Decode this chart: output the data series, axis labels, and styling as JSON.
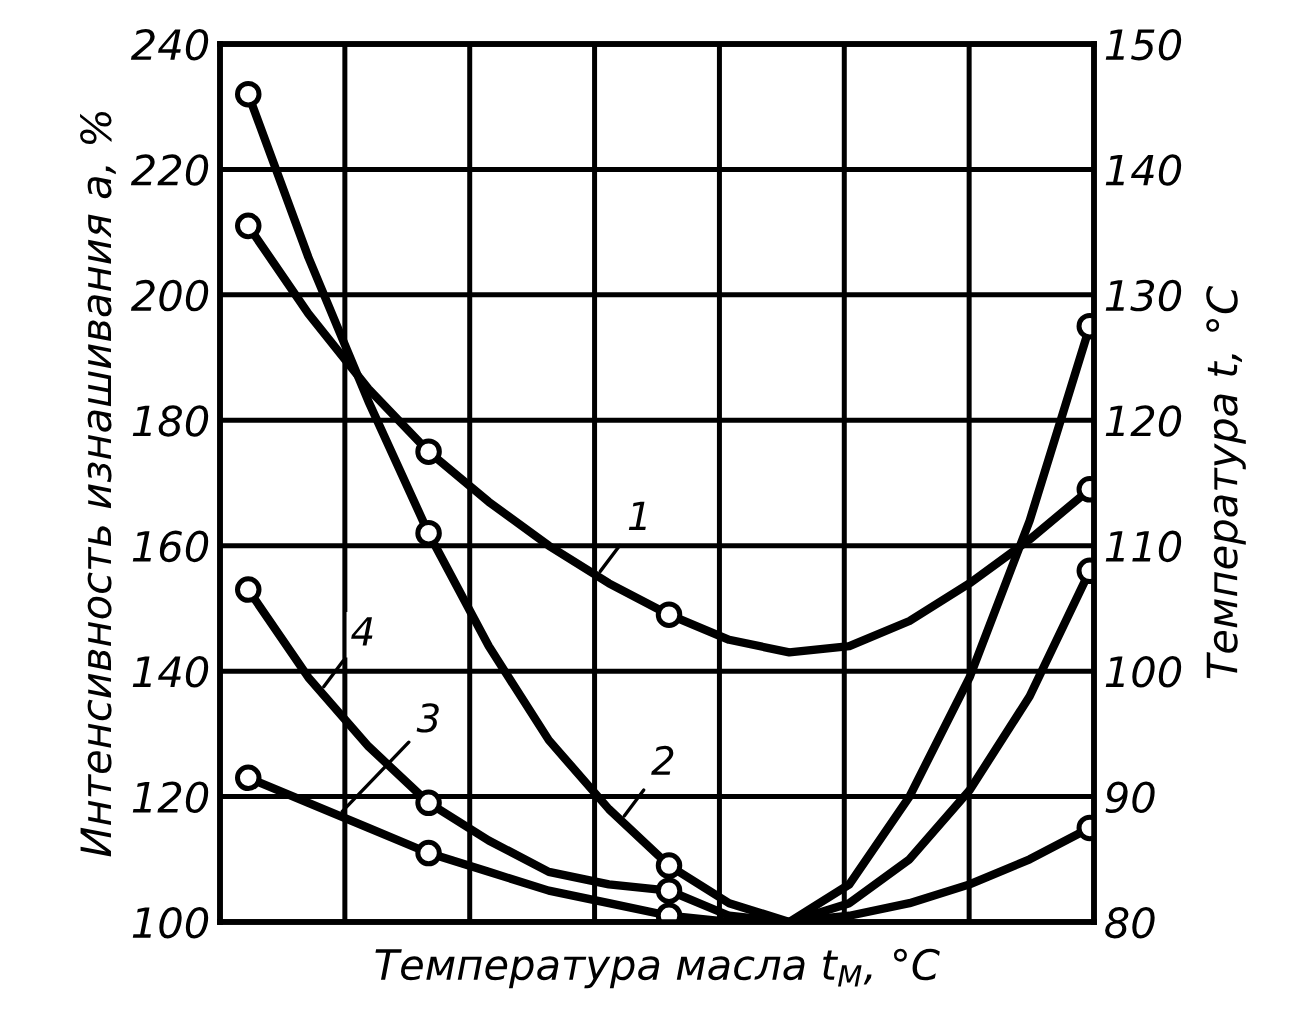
{
  "chart_data": {
    "type": "line",
    "xlabel": "Температура масла t$_{М}$, °C",
    "ylabel": "Интенсивность изнашивания a, %",
    "y2label": "Температура t, °C",
    "categories": [
      null,
      null,
      null,
      null,
      null,
      null,
      null,
      null,
      null,
      null,
      null,
      null,
      null,
      null,
      null
    ],
    "series": [
      {
        "name": "1",
        "color": "#000000",
        "values": [
          211,
          197,
          185,
          175,
          167,
          160,
          154,
          149,
          145,
          143,
          144,
          148,
          154,
          161,
          169
        ]
      },
      {
        "name": "2",
        "color": "#000000",
        "values": [
          232,
          206,
          183,
          162,
          144,
          129,
          118,
          109,
          103,
          100,
          106,
          120,
          139,
          164,
          195
        ]
      },
      {
        "name": "3",
        "color": "#000000",
        "values": [
          123,
          119,
          115,
          111,
          108,
          105,
          103,
          101,
          100,
          100,
          101,
          103,
          106,
          110,
          115
        ]
      },
      {
        "name": "4",
        "color": "#000000",
        "values": [
          153,
          139,
          128,
          119,
          113,
          108,
          106,
          105,
          101,
          100,
          103,
          110,
          121,
          136,
          156
        ]
      },
      {
        "type": "scatter",
        "color": "#000000",
        "marker": "circle",
        "values": [
          211,
          null,
          null,
          175,
          null,
          null,
          null,
          149,
          null,
          null,
          null,
          null,
          null,
          null,
          169
        ]
      },
      {
        "type": "scatter",
        "color": "#000000",
        "marker": "circle",
        "values": [
          232,
          null,
          null,
          162,
          null,
          null,
          null,
          109,
          null,
          null,
          null,
          null,
          null,
          null,
          195
        ]
      },
      {
        "type": "scatter",
        "color": "#000000",
        "marker": "circle",
        "values": [
          123,
          null,
          null,
          111,
          null,
          null,
          null,
          101,
          null,
          null,
          null,
          null,
          null,
          null,
          115
        ]
      },
      {
        "type": "scatter",
        "color": "#000000",
        "marker": "circle",
        "values": [
          153,
          null,
          null,
          119,
          null,
          null,
          null,
          105,
          null,
          null,
          null,
          null,
          null,
          null,
          156
        ]
      }
    ],
    "ylim": [
      100,
      240
    ],
    "yticks": [
      100,
      120,
      140,
      160,
      180,
      200,
      220,
      240
    ],
    "y2lim": [
      80,
      150
    ],
    "y2ticks": [
      80,
      90,
      100,
      110,
      120,
      130,
      140,
      150
    ],
    "grid": true,
    "marker": "none",
    "line_style": "solid",
    "legend": false
  }
}
